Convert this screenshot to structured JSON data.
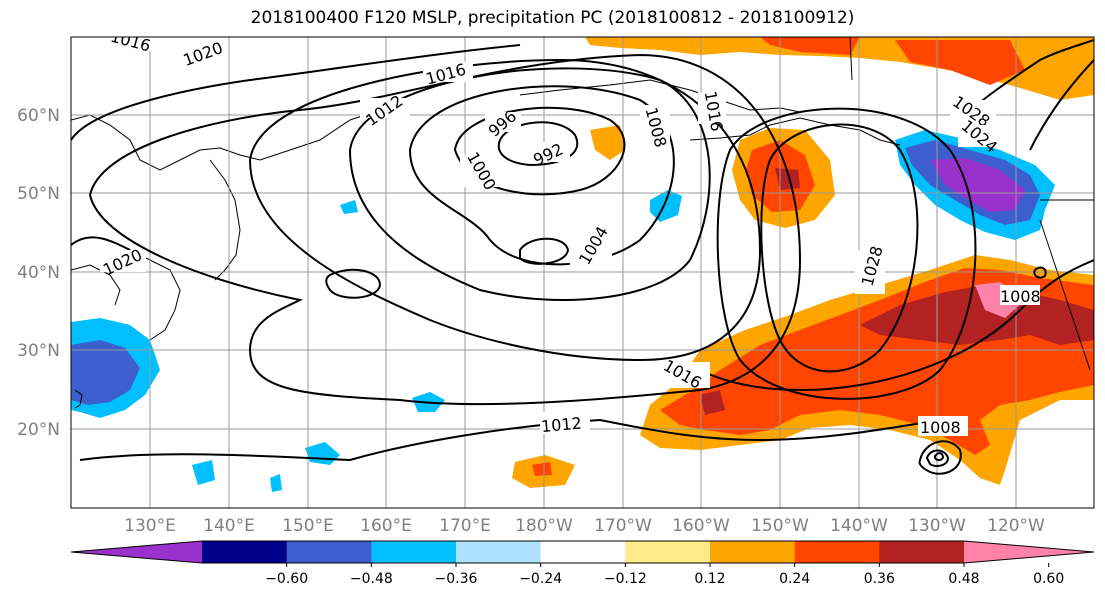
{
  "title": "2018100400 F120 MSLP, precipitation PC (2018100812 - 2018100912)",
  "map": {
    "lat_labels": [
      "60°N",
      "50°N",
      "40°N",
      "30°N",
      "20°N"
    ],
    "lon_labels": [
      "130°E",
      "140°E",
      "150°E",
      "160°E",
      "170°E",
      "180°W",
      "170°W",
      "160°W",
      "150°W",
      "140°W",
      "130°W",
      "120°W"
    ],
    "isobar_labels": [
      "1016",
      "1020",
      "1016",
      "1012",
      "996",
      "992",
      "1000",
      "1008",
      "1016",
      "1004",
      "1028",
      "1020",
      "1008",
      "1016",
      "1012",
      "1008",
      "1028",
      "1024"
    ]
  },
  "colorbar": {
    "colors": [
      "#9932cc",
      "#00008b",
      "#3c5fcd",
      "#00bfff",
      "#b0e2ff",
      "#ffffff",
      "#ffeb8a",
      "#ffa500",
      "#ff4500",
      "#b22222",
      "#ff82ab"
    ],
    "tick_labels": [
      "-0.60",
      "-0.48",
      "-0.36",
      "-0.24",
      "-0.12",
      "0.12",
      "0.24",
      "0.36",
      "0.48",
      "0.60"
    ]
  }
}
